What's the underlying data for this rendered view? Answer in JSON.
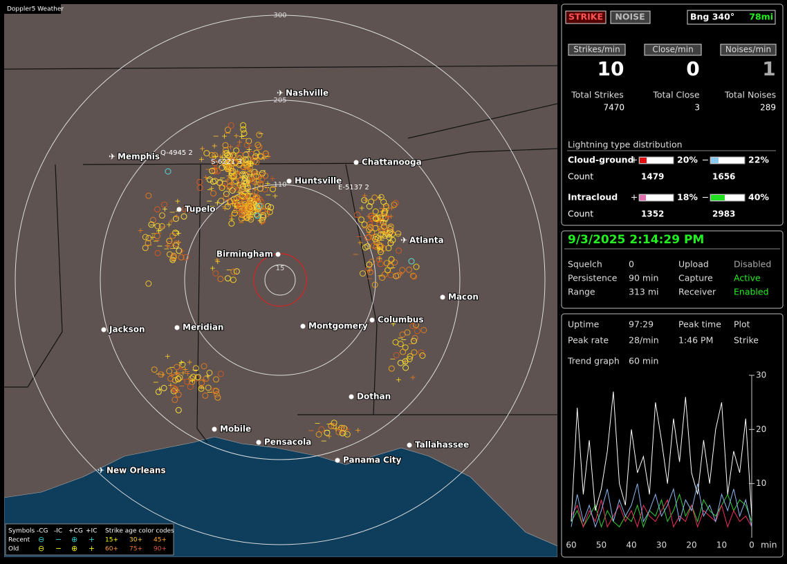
{
  "map": {
    "title": "Doppler5 Weather",
    "rings": [
      "300",
      "205",
      "110",
      "15"
    ],
    "cities": [
      "Nashville",
      "Memphis",
      "Chattanooga",
      "Huntsville",
      "Tupelo",
      "Atlanta",
      "Birmingham",
      "Macon",
      "Jackson",
      "Meridian",
      "Montgomery",
      "Columbus",
      "Dothan",
      "Mobile",
      "Pensacola",
      "Tallahassee",
      "Panama City",
      "New Orleans"
    ],
    "strike_tags": [
      "Q-4945 2",
      "S-6221 3",
      "E-5137 2"
    ],
    "legend": {
      "symbols_title": "Symbols",
      "types": [
        "-CG",
        "-IC",
        "+CG",
        "+IC"
      ],
      "age_title": "Strike age color codes",
      "rows": [
        "Recent",
        "Old"
      ],
      "ages": [
        "15+",
        "30+",
        "45+",
        "60+",
        "75+",
        "90+"
      ]
    }
  },
  "panel": {
    "modes": [
      "STRIKE",
      "NOISE"
    ],
    "bearing": "Bng 340°",
    "distance": "78mi",
    "rates": [
      {
        "label": "Strikes/min",
        "value": 10
      },
      {
        "label": "Close/min",
        "value": 0
      },
      {
        "label": "Noises/min",
        "value": 1
      }
    ],
    "totals": [
      {
        "label": "Total Strikes",
        "value": 7470
      },
      {
        "label": "Total Close",
        "value": 3
      },
      {
        "label": "Total Noises",
        "value": 289
      }
    ],
    "distribution": {
      "title": "Lightning type distribution",
      "signs": [
        "+",
        "−"
      ],
      "count_label": "Count",
      "rows": [
        {
          "name": "Cloud-ground",
          "pos": {
            "value": 20,
            "label": "20%"
          },
          "neg": {
            "value": 22,
            "label": "22%"
          },
          "pos_count": 1479,
          "neg_count": 1656
        },
        {
          "name": "Intracloud",
          "pos": {
            "value": 18,
            "label": "18%"
          },
          "neg": {
            "value": 40,
            "label": "40%"
          },
          "pos_count": 1352,
          "neg_count": 2983
        }
      ]
    },
    "datetime": "9/3/2025 2:14:29 PM",
    "settings": [
      [
        "Squelch",
        "0",
        "Upload",
        "Disabled"
      ],
      [
        "Persistence",
        "90 min",
        "Capture",
        "Active"
      ],
      [
        "Range",
        "313 mi",
        "Receiver",
        "Enabled"
      ]
    ],
    "stats": [
      [
        "Uptime",
        "97:29",
        "Peak time",
        "Plot"
      ],
      [
        "Peak rate",
        "28/min",
        "1:46 PM",
        "Strike"
      ]
    ],
    "trend": {
      "label": "Trend graph",
      "window": "60 min",
      "ylim": [
        0,
        30
      ],
      "yticks": [
        30,
        20,
        10
      ],
      "xlim": [
        60,
        0
      ],
      "xticks": [
        60,
        50,
        40,
        30,
        20,
        10,
        0
      ],
      "xunit": "min",
      "x": [
        60,
        58,
        56,
        54,
        52,
        50,
        48,
        46,
        44,
        42,
        40,
        38,
        36,
        34,
        32,
        30,
        28,
        26,
        24,
        22,
        20,
        18,
        16,
        14,
        12,
        10,
        8,
        6,
        4,
        2,
        0
      ],
      "series": [
        {
          "color": "#ffffff",
          "values": [
            3,
            24,
            8,
            18,
            5,
            9,
            16,
            27,
            10,
            6,
            20,
            12,
            15,
            8,
            25,
            18,
            10,
            22,
            14,
            26,
            12,
            8,
            18,
            10,
            20,
            25,
            8,
            16,
            12,
            22,
            4
          ]
        },
        {
          "color": "#8ab8f0",
          "values": [
            2,
            8,
            3,
            6,
            2,
            5,
            9,
            3,
            7,
            4,
            6,
            10,
            3,
            5,
            8,
            4,
            6,
            9,
            3,
            7,
            5,
            10,
            4,
            6,
            3,
            8,
            5,
            9,
            4,
            7,
            2
          ]
        },
        {
          "color": "#f03060",
          "values": [
            4,
            6,
            2,
            5,
            3,
            7,
            2,
            4,
            6,
            3,
            5,
            2,
            6,
            4,
            3,
            5,
            7,
            2,
            4,
            3,
            6,
            2,
            5,
            4,
            3,
            6,
            2,
            5,
            3,
            4,
            2
          ]
        },
        {
          "color": "#30d030",
          "values": [
            3,
            5,
            2,
            4,
            6,
            2,
            5,
            3,
            2,
            4,
            3,
            6,
            2,
            5,
            4,
            7,
            3,
            5,
            8,
            4,
            6,
            3,
            7,
            5,
            4,
            6,
            8,
            5,
            7,
            6,
            3
          ]
        }
      ]
    }
  }
}
